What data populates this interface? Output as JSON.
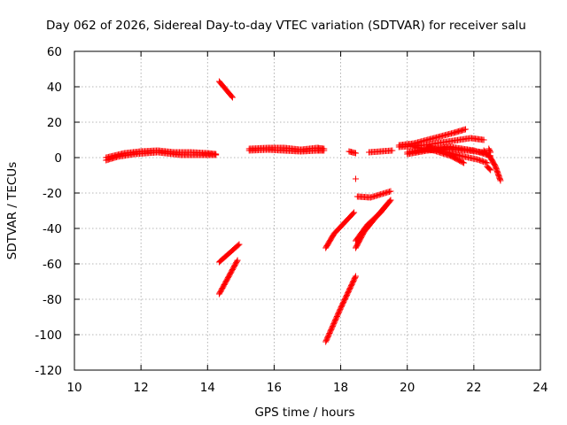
{
  "chart_data": {
    "type": "scatter",
    "title": "Day 062 of 2026, Sidereal Day-to-day VTEC variation (SDTVAR) for receiver salu",
    "xlabel": "GPS time / hours",
    "ylabel": "SDTVAR / TECUs",
    "xlim": [
      10,
      24
    ],
    "ylim": [
      -120,
      60
    ],
    "xticks": [
      10,
      12,
      14,
      16,
      18,
      20,
      22,
      24
    ],
    "yticks": [
      -120,
      -100,
      -80,
      -60,
      -40,
      -20,
      0,
      20,
      40,
      60
    ],
    "grid": true,
    "marker": "+",
    "color": "#ff0000",
    "segments": [
      {
        "x": [
          10.95,
          11.5,
          12.0,
          12.5,
          13.0,
          13.5,
          14.0,
          14.25
        ],
        "y": [
          0,
          2.5,
          3.5,
          4,
          3,
          3,
          2.5,
          2
        ]
      },
      {
        "x": [
          10.95,
          11.3,
          11.8,
          12.5,
          13.2,
          13.8,
          14.25
        ],
        "y": [
          -1.5,
          0.5,
          2,
          3,
          1.5,
          1.5,
          1.5
        ]
      },
      {
        "x": [
          14.35,
          14.75
        ],
        "y": [
          43,
          34
        ]
      },
      {
        "x": [
          14.35,
          14.95
        ],
        "y": [
          -59,
          -49
        ]
      },
      {
        "x": [
          14.35,
          14.9
        ],
        "y": [
          -77,
          -58
        ]
      },
      {
        "x": [
          15.25,
          15.8,
          16.3,
          16.8,
          17.3,
          17.5
        ],
        "y": [
          5,
          5.5,
          5.5,
          4.5,
          5.5,
          5
        ]
      },
      {
        "x": [
          15.25,
          15.8,
          16.3,
          16.8,
          17.3,
          17.5
        ],
        "y": [
          4,
          4.5,
          4,
          3.5,
          4,
          4
        ]
      },
      {
        "x": [
          17.55,
          18.0,
          18.45
        ],
        "y": [
          -104,
          -85,
          -67
        ]
      },
      {
        "x": [
          17.55,
          17.8,
          18.1,
          18.4
        ],
        "y": [
          -51,
          -43,
          -37,
          -31
        ]
      },
      {
        "x": [
          18.25,
          18.45
        ],
        "y": [
          3.5,
          2.5
        ]
      },
      {
        "x": [
          18.45
        ],
        "y": [
          -12
        ]
      },
      {
        "x": [
          18.5,
          18.9,
          19.5
        ],
        "y": [
          -22,
          -22.5,
          -19
        ]
      },
      {
        "x": [
          18.45,
          18.7,
          19.0,
          19.5
        ],
        "y": [
          -51,
          -42,
          -35,
          -24
        ]
      },
      {
        "x": [
          18.45,
          18.8,
          19.2,
          19.5
        ],
        "y": [
          -47,
          -38,
          -31,
          -24
        ]
      },
      {
        "x": [
          18.85,
          19.2,
          19.55
        ],
        "y": [
          3,
          3.5,
          4
        ]
      },
      {
        "x": [
          19.75,
          20.2,
          20.8,
          21.4,
          21.75
        ],
        "y": [
          7,
          8,
          11,
          14,
          16
        ]
      },
      {
        "x": [
          19.75,
          20.5,
          21.2,
          21.9,
          22.3
        ],
        "y": [
          6,
          7,
          9,
          11,
          10
        ]
      },
      {
        "x": [
          20.0,
          20.6,
          21.2,
          21.8,
          22.3
        ],
        "y": [
          2,
          4,
          5,
          4,
          3
        ]
      },
      {
        "x": [
          20.0,
          20.7,
          21.3,
          22.0,
          22.5
        ],
        "y": [
          3,
          5,
          6,
          4,
          1
        ]
      },
      {
        "x": [
          20.2,
          20.8,
          21.3,
          21.7
        ],
        "y": [
          6,
          4,
          1,
          -3
        ]
      },
      {
        "x": [
          20.6,
          21.2,
          21.6,
          22.1,
          22.4
        ],
        "y": [
          6,
          3,
          1,
          -1,
          -3
        ]
      },
      {
        "x": [
          22.3,
          22.5,
          22.65,
          22.8
        ],
        "y": [
          4,
          0,
          -5,
          -13
        ]
      },
      {
        "x": [
          22.4,
          22.5
        ],
        "y": [
          -5,
          -7
        ]
      },
      {
        "x": [
          22.45,
          22.5
        ],
        "y": [
          5,
          3
        ]
      }
    ]
  }
}
